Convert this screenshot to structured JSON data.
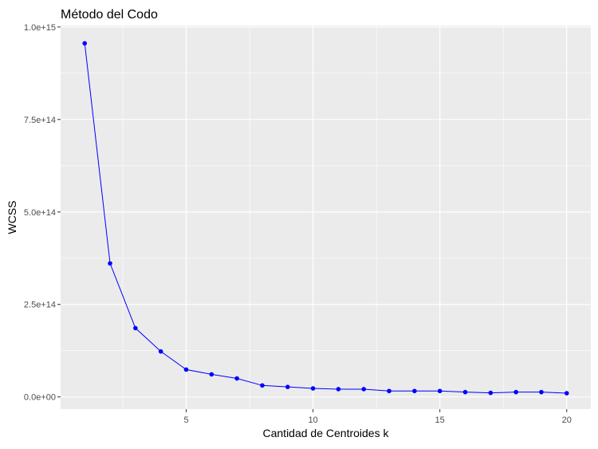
{
  "chart_data": {
    "type": "line",
    "title": "Método del Codo",
    "xlabel": "Cantidad de Centroides k",
    "ylabel": "WCSS",
    "x": [
      1,
      2,
      3,
      4,
      5,
      6,
      7,
      8,
      9,
      10,
      11,
      12,
      13,
      14,
      15,
      16,
      17,
      18,
      19,
      20
    ],
    "series": [
      {
        "values": [
          956000000000000.0,
          361000000000000.0,
          186000000000000.0,
          123000000000000.0,
          74000000000000.0,
          61000000000000.0,
          50000000000000.0,
          31000000000000.0,
          27000000000000.0,
          23000000000000.0,
          21000000000000.0,
          21000000000000.0,
          16000000000000.0,
          16000000000000.0,
          16000000000000.0,
          13000000000000.0,
          11000000000000.0,
          13000000000000.0,
          13000000000000.0,
          10000000000000.0
        ],
        "color": "#0000ff"
      }
    ],
    "xlim": [
      0.05,
      20.95
    ],
    "ylim": [
      -33000000000000.0,
      1004000000000000.0
    ],
    "xticks": [
      5,
      10,
      15,
      20
    ],
    "xtick_labels": [
      "5",
      "10",
      "15",
      "20"
    ],
    "yticks": [
      0,
      250000000000000.0,
      500000000000000.0,
      750000000000000.0,
      1000000000000000.0
    ],
    "ytick_labels": [
      "0.0e+00",
      "2.5e+14",
      "5.0e+14",
      "7.5e+14",
      "1.0e+15"
    ],
    "grid": true,
    "panel_background": "#ebebeb",
    "grid_color": "#ffffff"
  }
}
